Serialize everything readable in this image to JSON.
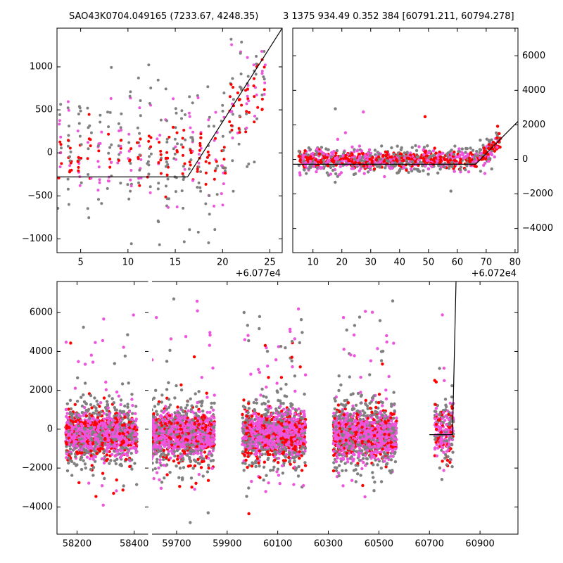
{
  "titles": {
    "left": "SAO43K0704.049165 (7233.67, 4248.35)",
    "right": "3 1375 934.49 0.352 384 [60791.211, 60794.278]"
  },
  "colors": {
    "gray": "#808080",
    "red": "#ff0000",
    "magenta": "#ee55dd",
    "line": "#000000"
  },
  "chart_data": [
    {
      "type": "scatter",
      "xlim": [
        2.5,
        26.3
      ],
      "ylim": [
        -1160,
        1450
      ],
      "xticks": [
        5,
        10,
        15,
        20,
        25
      ],
      "xtick_labels": [
        "5",
        "10",
        "15",
        "20",
        "25"
      ],
      "yticks": [
        -1000,
        -500,
        0,
        500,
        1000
      ],
      "ytick_labels": [
        "−1000",
        "−500",
        "0",
        "500",
        "1000"
      ],
      "offset_label": "+6.077e4",
      "yaxis_side": "left",
      "model_line": [
        [
          2.5,
          -280
        ],
        [
          16.3,
          -280
        ],
        [
          26.3,
          1450
        ]
      ],
      "grid": false
    },
    {
      "type": "scatter",
      "xlim": [
        3,
        81
      ],
      "ylim": [
        -5400,
        7600
      ],
      "xticks": [
        10,
        20,
        30,
        40,
        50,
        60,
        70,
        80
      ],
      "xtick_labels": [
        "10",
        "20",
        "30",
        "40",
        "50",
        "60",
        "70",
        "80"
      ],
      "yticks": [
        -4000,
        -2000,
        0,
        2000,
        4000,
        6000
      ],
      "ytick_labels": [
        "−4000",
        "−2000",
        "0",
        "2000",
        "4000",
        "6000"
      ],
      "offset_label": "+6.072e4",
      "yaxis_side": "right",
      "model_line": [
        [
          3,
          -280
        ],
        [
          66.3,
          -280
        ],
        [
          81,
          2200
        ]
      ],
      "grid": false
    },
    {
      "type": "scatter",
      "broken_axis": true,
      "segments": [
        {
          "xlim": [
            58130,
            58450
          ],
          "xticks": [
            58200,
            58400
          ],
          "xtick_labels": [
            "58200",
            "58400"
          ]
        },
        {
          "xlim": [
            59600,
            61050
          ],
          "xticks": [
            59700,
            59900,
            60100,
            60300,
            60500,
            60700,
            60900
          ],
          "xtick_labels": [
            "59700",
            "59900",
            "60100",
            "60300",
            "60500",
            "60700",
            "60900"
          ]
        }
      ],
      "ylim": [
        -5400,
        7600
      ],
      "yticks": [
        -4000,
        -2000,
        0,
        2000,
        4000,
        6000
      ],
      "ytick_labels": [
        "−4000",
        "−2000",
        "0",
        "2000",
        "4000",
        "6000"
      ],
      "yaxis_side": "left",
      "observing_seasons": [
        {
          "start": 58160,
          "end": 58410
        },
        {
          "start": 59600,
          "end": 59850
        },
        {
          "start": 59960,
          "end": 60210
        },
        {
          "start": 60320,
          "end": 60570
        },
        {
          "start": 60720,
          "end": 60795
        }
      ],
      "model_line": [
        [
          60700,
          -280
        ],
        [
          60791.2,
          -280
        ],
        [
          60805,
          7600
        ]
      ],
      "grid": false
    }
  ]
}
